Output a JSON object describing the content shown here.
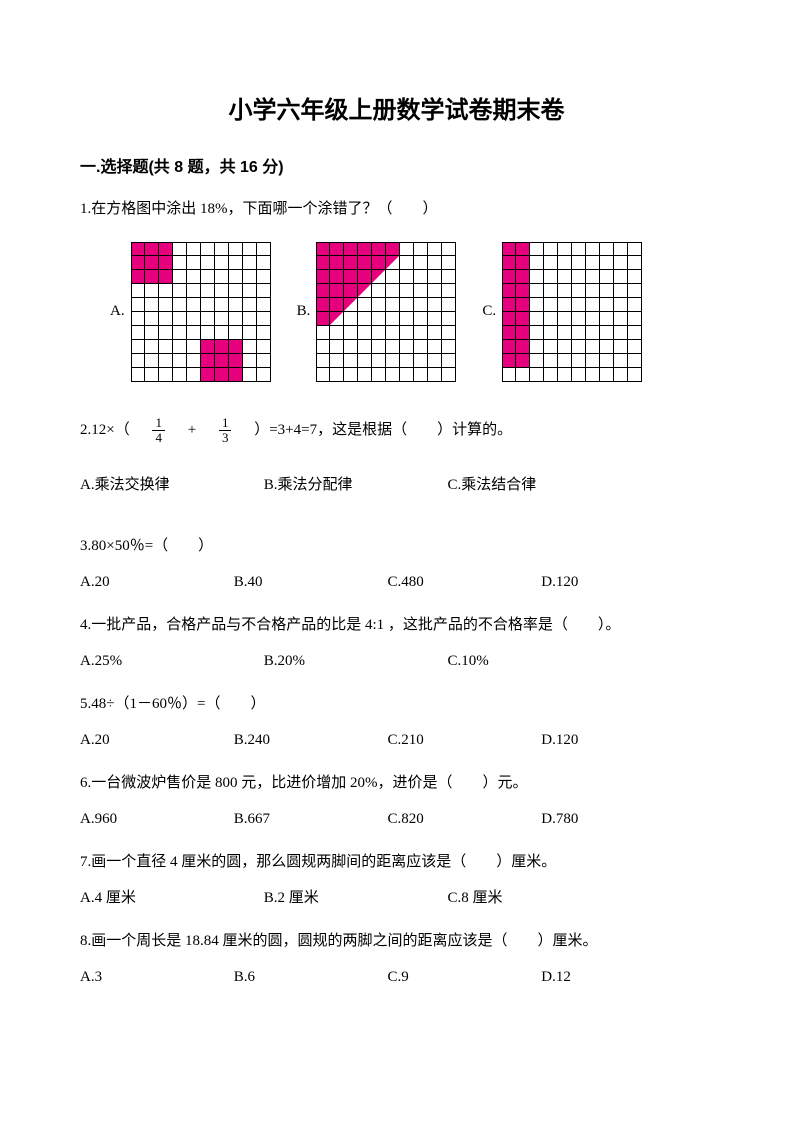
{
  "title": "小学六年级上册数学试卷期末卷",
  "section1": "一.选择题(共 8 题，共 16 分)",
  "q1": {
    "text": "1.在方格图中涂出 18%，下面哪一个涂错了？（　　）",
    "labels": {
      "a": "A.",
      "b": "B.",
      "c": "C."
    }
  },
  "gridsA": [
    [
      1,
      1,
      1,
      0,
      0,
      0,
      0,
      0,
      0,
      0
    ],
    [
      1,
      1,
      1,
      0,
      0,
      0,
      0,
      0,
      0,
      0
    ],
    [
      1,
      1,
      1,
      0,
      0,
      0,
      0,
      0,
      0,
      0
    ],
    [
      0,
      0,
      0,
      0,
      0,
      0,
      0,
      0,
      0,
      0
    ],
    [
      0,
      0,
      0,
      0,
      0,
      0,
      0,
      0,
      0,
      0
    ],
    [
      0,
      0,
      0,
      0,
      0,
      0,
      0,
      0,
      0,
      0
    ],
    [
      0,
      0,
      0,
      0,
      0,
      0,
      0,
      0,
      0,
      0
    ],
    [
      0,
      0,
      0,
      0,
      0,
      1,
      1,
      1,
      0,
      0
    ],
    [
      0,
      0,
      0,
      0,
      0,
      1,
      1,
      1,
      0,
      0
    ],
    [
      0,
      0,
      0,
      0,
      0,
      1,
      1,
      1,
      0,
      0
    ]
  ],
  "gridsB": [
    [
      1,
      1,
      1,
      1,
      1,
      1,
      0,
      0,
      0,
      0
    ],
    [
      1,
      1,
      1,
      1,
      1,
      2,
      0,
      0,
      0,
      0
    ],
    [
      1,
      1,
      1,
      1,
      2,
      0,
      0,
      0,
      0,
      0
    ],
    [
      1,
      1,
      1,
      2,
      0,
      0,
      0,
      0,
      0,
      0
    ],
    [
      1,
      1,
      2,
      0,
      0,
      0,
      0,
      0,
      0,
      0
    ],
    [
      1,
      2,
      0,
      0,
      0,
      0,
      0,
      0,
      0,
      0
    ],
    [
      0,
      0,
      0,
      0,
      0,
      0,
      0,
      0,
      0,
      0
    ],
    [
      0,
      0,
      0,
      0,
      0,
      0,
      0,
      0,
      0,
      0
    ],
    [
      0,
      0,
      0,
      0,
      0,
      0,
      0,
      0,
      0,
      0
    ],
    [
      0,
      0,
      0,
      0,
      0,
      0,
      0,
      0,
      0,
      0
    ]
  ],
  "gridsC": [
    [
      1,
      1,
      0,
      0,
      0,
      0,
      0,
      0,
      0,
      0
    ],
    [
      1,
      1,
      0,
      0,
      0,
      0,
      0,
      0,
      0,
      0
    ],
    [
      1,
      1,
      0,
      0,
      0,
      0,
      0,
      0,
      0,
      0
    ],
    [
      1,
      1,
      0,
      0,
      0,
      0,
      0,
      0,
      0,
      0
    ],
    [
      1,
      1,
      0,
      0,
      0,
      0,
      0,
      0,
      0,
      0
    ],
    [
      1,
      1,
      0,
      0,
      0,
      0,
      0,
      0,
      0,
      0
    ],
    [
      1,
      1,
      0,
      0,
      0,
      0,
      0,
      0,
      0,
      0
    ],
    [
      1,
      1,
      0,
      0,
      0,
      0,
      0,
      0,
      0,
      0
    ],
    [
      1,
      1,
      0,
      0,
      0,
      0,
      0,
      0,
      0,
      0
    ],
    [
      0,
      0,
      0,
      0,
      0,
      0,
      0,
      0,
      0,
      0
    ]
  ],
  "grid_colors": {
    "fill": "#e6007e",
    "border": "#000000",
    "bg": "#ffffff"
  },
  "q2": {
    "pre": "2.12×（　",
    "f1n": "1",
    "f1d": "4",
    "mid": "　+　",
    "f2n": "1",
    "f2d": "3",
    "post": "　）=3+4=7，这是根据（　　）计算的。",
    "a": "A.乘法交换律",
    "b": "B.乘法分配律",
    "c": "C.乘法结合律"
  },
  "q3": {
    "text": "3.80×50％=（　　）",
    "a": "A.20",
    "b": "B.40",
    "c": "C.480",
    "d": "D.120"
  },
  "q4": {
    "text": "4.一批产品，合格产品与不合格产品的比是 4:1 ，这批产品的不合格率是（　　）。",
    "a": "A.25%",
    "b": "B.20%",
    "c": "C.10%"
  },
  "q5": {
    "text": "5.48÷（1－60％）=（　　）",
    "a": "A.20",
    "b": "B.240",
    "c": "C.210",
    "d": "D.120"
  },
  "q6": {
    "text": "6.一台微波炉售价是 800 元，比进价增加 20%，进价是（　　）元。",
    "a": "A.960",
    "b": "B.667",
    "c": "C.820",
    "d": "D.780"
  },
  "q7": {
    "text": "7.画一个直径 4 厘米的圆，那么圆规两脚间的距离应该是（　　）厘米。",
    "a": "A.4 厘米",
    "b": "B.2 厘米",
    "c": "C.8 厘米"
  },
  "q8": {
    "text": "8.画一个周长是 18.84 厘米的圆，圆规的两脚之间的距离应该是（　　）厘米。",
    "a": "A.3",
    "b": "B.6",
    "c": "C.9",
    "d": "D.12"
  }
}
